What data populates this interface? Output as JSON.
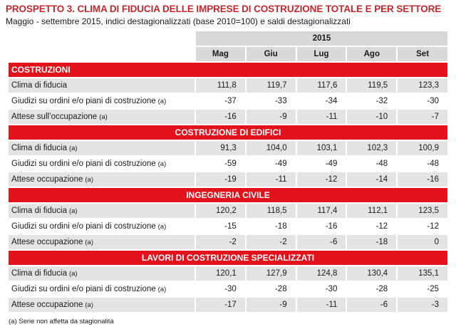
{
  "title": "PROSPETTO 3. CLIMA DI FIDUCIA DELLE IMPRESE DI COSTRUZIONE TOTALE E PER SETTORE",
  "subtitle": "Maggio - settembre 2015, indici destagionalizzati (base 2010=100) e saldi destagionalizzati",
  "year": "2015",
  "months": [
    "Mag",
    "Giu",
    "Lug",
    "Ago",
    "Set"
  ],
  "note_marker": "(a)",
  "sections": [
    {
      "title": "COSTRUZIONI",
      "align": "left",
      "rows": [
        {
          "label": "Clima di fiducia",
          "note": "",
          "values": [
            "111,8",
            "119,7",
            "117,6",
            "119,5",
            "123,3"
          ]
        },
        {
          "label": "Giudizi su ordini e/o piani di costruzione",
          "note": "(a)",
          "values": [
            "-37",
            "-33",
            "-34",
            "-32",
            "-30"
          ]
        },
        {
          "label": "Attese sull’occupazione",
          "note": "(a)",
          "values": [
            "-16",
            "-9",
            "-11",
            "-10",
            "-7"
          ]
        }
      ]
    },
    {
      "title": "COSTRUZIONE DI EDIFICI",
      "align": "center",
      "rows": [
        {
          "label": "Clima di fiducia",
          "note": "(a)",
          "values": [
            "91,3",
            "104,0",
            "103,1",
            "102,3",
            "100,9"
          ]
        },
        {
          "label": "Giudizi su ordini e/o piani di costruzione",
          "note": "(a)",
          "values": [
            "-59",
            "-49",
            "-49",
            "-48",
            "-48"
          ]
        },
        {
          "label": "Attese occupazione",
          "note": "(a)",
          "values": [
            "-19",
            "-11",
            "-12",
            "-14",
            "-16"
          ]
        }
      ]
    },
    {
      "title": "INGEGNERIA CIVILE",
      "align": "center",
      "rows": [
        {
          "label": "Clima di fiducia",
          "note": "(a)",
          "values": [
            "120,2",
            "118,5",
            "117,4",
            "112,1",
            "123,5"
          ]
        },
        {
          "label": "Giudizi su ordini e/o piani di costruzione",
          "note": "(a)",
          "values": [
            "-15",
            "-18",
            "-16",
            "-12",
            "-12"
          ]
        },
        {
          "label": "Attese occupazione",
          "note": "(a)",
          "values": [
            "-2",
            "-2",
            "-6",
            "-18",
            "0"
          ]
        }
      ]
    },
    {
      "title": "LAVORI DI COSTRUZIONE SPECIALIZZATI",
      "align": "center",
      "rows": [
        {
          "label": "Clima di fiducia",
          "note": "(a)",
          "values": [
            "120,1",
            "127,9",
            "124,8",
            "130,4",
            "135,1"
          ]
        },
        {
          "label": "Giudizi su ordini e/o piani di costruzione",
          "note": "(a)",
          "values": [
            "-30",
            "-28",
            "-30",
            "-28",
            "-25"
          ]
        },
        {
          "label": "Attese occupazione",
          "note": "(a)",
          "values": [
            "-17",
            "-9",
            "-11",
            "-6",
            "-3"
          ]
        }
      ]
    }
  ],
  "footnote": "(a) Serie non affetta da stagionalità",
  "colors": {
    "title": "#c0282d",
    "section_band": "#e3111b",
    "header_grey": "#d9d9d9",
    "row_grey": "#e4e4e4"
  }
}
